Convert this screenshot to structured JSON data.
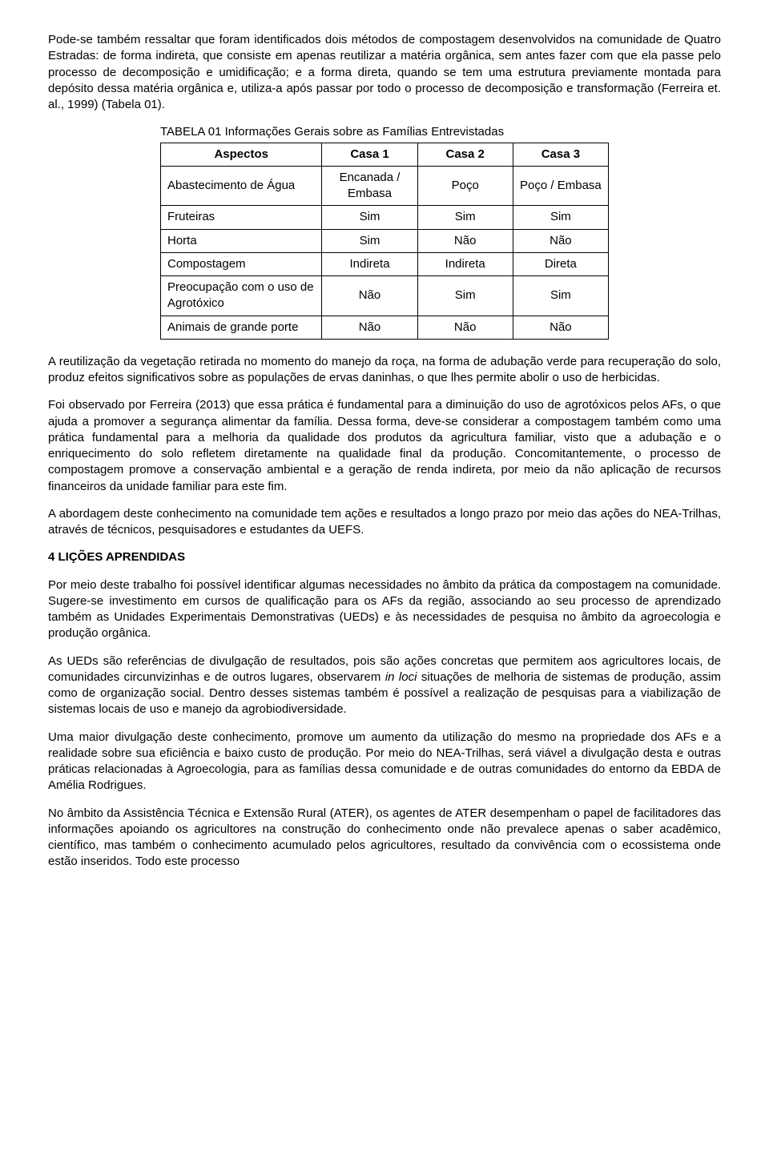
{
  "paragraphs": {
    "p1": "Pode-se também ressaltar que foram identificados dois métodos de compostagem desenvolvidos na comunidade de Quatro Estradas: de forma indireta, que consiste em apenas reutilizar a matéria orgânica, sem antes fazer com que ela passe pelo processo de decomposição e umidificação; e a forma direta, quando se tem uma estrutura previamente montada para depósito dessa matéria orgânica e, utiliza-a após passar por todo o processo de decomposição e transformação (Ferreira et. al., 1999) (Tabela 01).",
    "p2": "A reutilização da vegetação retirada no momento do manejo da roça, na forma de adubação verde para recuperação do solo, produz efeitos significativos sobre as populações de ervas daninhas, o que lhes permite abolir o uso de herbicidas.",
    "p3": "Foi observado por Ferreira (2013) que essa prática é fundamental para a diminuição do uso de agrotóxicos pelos AFs, o que ajuda a promover a segurança alimentar da família. Dessa forma, deve-se considerar a compostagem também como uma prática fundamental para a melhoria da qualidade dos produtos da agricultura familiar, visto que a adubação e o enriquecimento do solo refletem diretamente na qualidade final da produção. Concomitantemente, o processo de compostagem promove a conservação ambiental e a geração de renda indireta, por meio da não aplicação de recursos financeiros da unidade familiar para este fim.",
    "p4": "A abordagem deste conhecimento na comunidade tem ações e resultados a longo prazo por meio das ações do NEA-Trilhas, através de técnicos, pesquisadores e estudantes da UEFS.",
    "h4": "4 LIÇÕES APRENDIDAS",
    "p5": "Por meio deste trabalho foi possível identificar algumas necessidades no âmbito da prática da compostagem na comunidade. Sugere-se investimento em cursos de qualificação para os AFs da região, associando ao seu processo de aprendizado também as Unidades Experimentais Demonstrativas (UEDs) e às necessidades de pesquisa no âmbito da agroecologia e produção orgânica.",
    "p6_a": "As UEDs são referências de divulgação de resultados, pois são ações concretas que permitem aos agricultores locais, de comunidades circunvizinhas e de outros lugares, observarem ",
    "p6_i": "in loci",
    "p6_b": " situações de melhoria de sistemas de produção, assim como de organização social. Dentro desses sistemas também é possível a realização de pesquisas para a viabilização de sistemas locais de uso e manejo da agrobiodiversidade.",
    "p7": "Uma maior divulgação deste conhecimento, promove um aumento da utilização do mesmo na propriedade dos AFs e a realidade sobre sua eficiência e baixo custo de produção. Por meio do NEA-Trilhas, será viável a divulgação desta e outras práticas relacionadas à Agroecologia, para as famílias dessa comunidade e de outras comunidades do entorno da EBDA de Amélia Rodrigues.",
    "p8": "No âmbito da Assistência Técnica e Extensão Rural (ATER), os agentes de ATER desempenham o papel de facilitadores das informações apoiando os agricultores na construção do conhecimento onde não prevalece apenas o saber acadêmico, científico, mas também o conhecimento acumulado pelos agricultores, resultado da convivência com o ecossistema onde estão inseridos. Todo este processo"
  },
  "table": {
    "caption": "TABELA 01 Informações Gerais sobre as Famílias Entrevistadas",
    "type": "table",
    "border_color": "#000000",
    "background_color": "#ffffff",
    "font_size_pt": 11,
    "columns": [
      "Aspectos",
      "Casa 1",
      "Casa 2",
      "Casa 3"
    ],
    "column_widths_pct": [
      36,
      21.3,
      21.3,
      21.3
    ],
    "rows": [
      {
        "aspect": "Abastecimento de Água",
        "c1": "Encanada / Embasa",
        "c2": "Poço",
        "c3": "Poço / Embasa"
      },
      {
        "aspect": "Fruteiras",
        "c1": "Sim",
        "c2": "Sim",
        "c3": "Sim"
      },
      {
        "aspect": "Horta",
        "c1": "Sim",
        "c2": "Não",
        "c3": "Não"
      },
      {
        "aspect": "Compostagem",
        "c1": "Indireta",
        "c2": "Indireta",
        "c3": "Direta"
      },
      {
        "aspect": "Preocupação com o uso de Agrotóxico",
        "c1": "Não",
        "c2": "Sim",
        "c3": "Sim"
      },
      {
        "aspect": "Animais de grande porte",
        "c1": "Não",
        "c2": "Não",
        "c3": "Não"
      }
    ]
  }
}
